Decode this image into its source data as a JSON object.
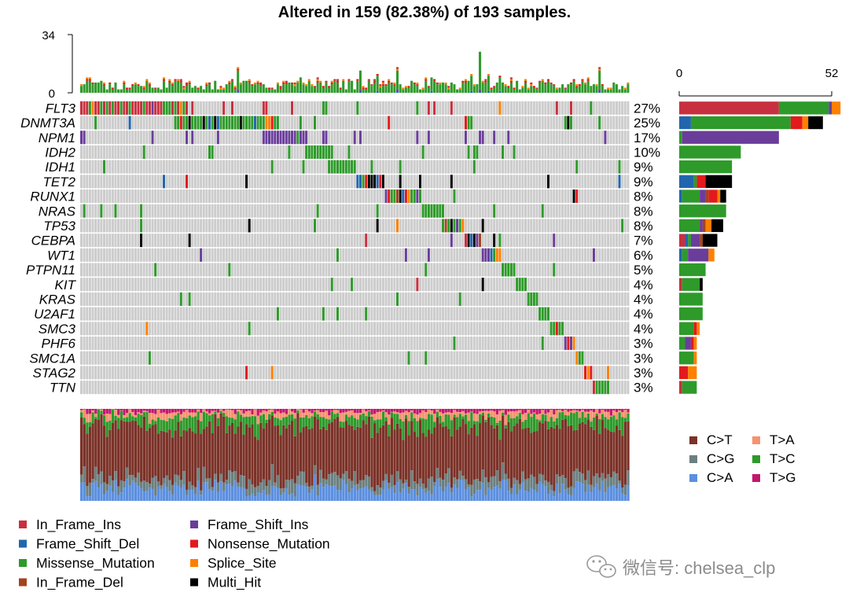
{
  "title": "Altered in 159 (82.38%) of 193 samples.",
  "colors": {
    "In_Frame_Ins": "#c8303f",
    "Frame_Shift_Del": "#2166ac",
    "Missense_Mutation": "#2e9a2a",
    "In_Frame_Del": "#a3441e",
    "Frame_Shift_Ins": "#6a3d9a",
    "Nonsense_Mutation": "#e31a1c",
    "Splice_Site": "#ff7f00",
    "Multi_Hit": "#000000",
    "background": "#cccccc",
    "C>T": "#7b3228",
    "C>G": "#6b7f80",
    "C>A": "#5b8fe0",
    "T>A": "#f7926f",
    "T>C": "#2e9a2a",
    "T>G": "#c4166e"
  },
  "chart_data": {
    "type": "heatmap",
    "n_samples": 193,
    "top_axis": {
      "ticks": [
        "0",
        "34"
      ],
      "ylim": [
        0,
        34
      ]
    },
    "right_axis": {
      "ticks": [
        "0",
        "52"
      ],
      "xlim": [
        0,
        52
      ]
    },
    "genes": [
      {
        "name": "FLT3",
        "pct": "27%",
        "counts": {
          "In_Frame_Ins": 34,
          "Missense_Mutation": 17,
          "Splice_Site": 3,
          "Frame_Shift_Ins": 1
        }
      },
      {
        "name": "DNMT3A",
        "pct": "25%",
        "counts": {
          "Frame_Shift_Del": 4,
          "Missense_Mutation": 34,
          "Nonsense_Mutation": 4,
          "Splice_Site": 2,
          "Multi_Hit": 5
        }
      },
      {
        "name": "NPM1",
        "pct": "17%",
        "counts": {
          "Missense_Mutation": 1,
          "Frame_Shift_Ins": 33
        }
      },
      {
        "name": "IDH2",
        "pct": "10%",
        "counts": {
          "Missense_Mutation": 21
        }
      },
      {
        "name": "IDH1",
        "pct": "9%",
        "counts": {
          "Missense_Mutation": 18
        }
      },
      {
        "name": "TET2",
        "pct": "9%",
        "counts": {
          "Frame_Shift_Del": 5,
          "Missense_Mutation": 1,
          "Nonsense_Mutation": 3,
          "Multi_Hit": 9
        }
      },
      {
        "name": "RUNX1",
        "pct": "8%",
        "counts": {
          "Frame_Shift_Del": 1,
          "Missense_Mutation": 6,
          "Frame_Shift_Ins": 2,
          "In_Frame_Del": 1,
          "Nonsense_Mutation": 3,
          "Splice_Site": 1,
          "Multi_Hit": 2
        }
      },
      {
        "name": "NRAS",
        "pct": "8%",
        "counts": {
          "Missense_Mutation": 16
        }
      },
      {
        "name": "TP53",
        "pct": "8%",
        "counts": {
          "Missense_Mutation": 7,
          "Frame_Shift_Ins": 1,
          "In_Frame_Del": 1,
          "Splice_Site": 2,
          "Multi_Hit": 4
        }
      },
      {
        "name": "CEBPA",
        "pct": "7%",
        "counts": {
          "In_Frame_Ins": 2,
          "Frame_Shift_Del": 1,
          "Missense_Mutation": 1,
          "Frame_Shift_Ins": 3,
          "In_Frame_Del": 1,
          "Multi_Hit": 5
        }
      },
      {
        "name": "WT1",
        "pct": "6%",
        "counts": {
          "Frame_Shift_Del": 1,
          "Missense_Mutation": 2,
          "Frame_Shift_Ins": 7,
          "Splice_Site": 2
        }
      },
      {
        "name": "PTPN11",
        "pct": "5%",
        "counts": {
          "Missense_Mutation": 9
        }
      },
      {
        "name": "KIT",
        "pct": "4%",
        "counts": {
          "In_Frame_Ins": 1,
          "Missense_Mutation": 6,
          "Multi_Hit": 1
        }
      },
      {
        "name": "KRAS",
        "pct": "4%",
        "counts": {
          "Missense_Mutation": 8
        }
      },
      {
        "name": "U2AF1",
        "pct": "4%",
        "counts": {
          "Missense_Mutation": 8
        }
      },
      {
        "name": "SMC3",
        "pct": "4%",
        "counts": {
          "Missense_Mutation": 5,
          "Nonsense_Mutation": 1,
          "Splice_Site": 1
        }
      },
      {
        "name": "PHF6",
        "pct": "3%",
        "counts": {
          "Missense_Mutation": 2,
          "Frame_Shift_Ins": 2,
          "Nonsense_Mutation": 1,
          "Splice_Site": 1
        }
      },
      {
        "name": "SMC1A",
        "pct": "3%",
        "counts": {
          "Missense_Mutation": 5,
          "Splice_Site": 1
        }
      },
      {
        "name": "STAG2",
        "pct": "3%",
        "counts": {
          "Nonsense_Mutation": 3,
          "Splice_Site": 3
        }
      },
      {
        "name": "TTN",
        "pct": "3%",
        "counts": {
          "In_Frame_Ins": 1,
          "Missense_Mutation": 5
        }
      }
    ],
    "variant_legend": [
      "In_Frame_Ins",
      "Frame_Shift_Ins",
      "Frame_Shift_Del",
      "Nonsense_Mutation",
      "Missense_Mutation",
      "Splice_Site",
      "In_Frame_Del",
      "Multi_Hit"
    ],
    "titv_legend": [
      "C>T",
      "T>A",
      "C>G",
      "T>C",
      "C>A",
      "T>G"
    ],
    "titv_typical_fraction": {
      "C>T": 0.6,
      "C>G": 0.1,
      "C>A": 0.12,
      "T>A": 0.05,
      "T>C": 0.1,
      "T>G": 0.03
    }
  },
  "watermark": {
    "text": "微信号: chelsea_clp",
    "icon": "wechat-icon"
  }
}
